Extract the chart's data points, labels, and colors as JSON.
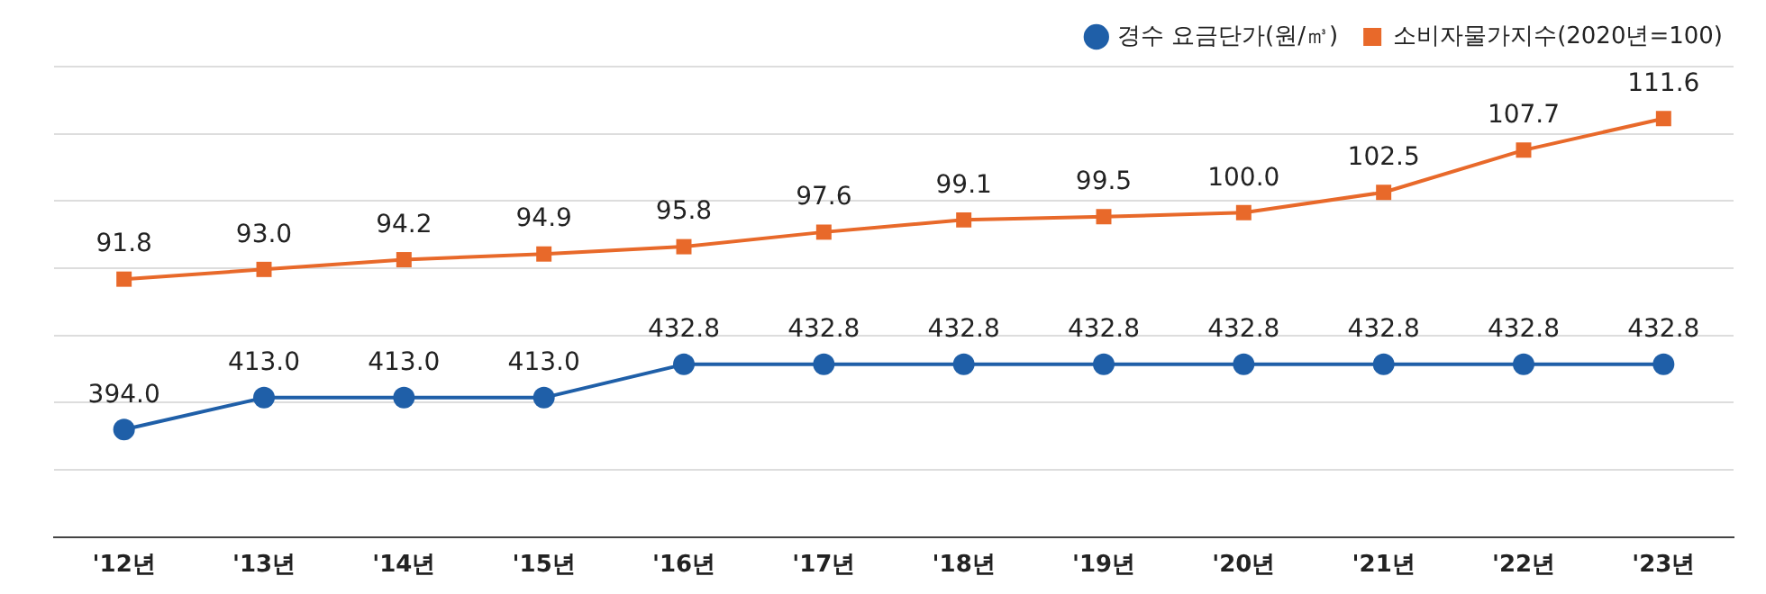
{
  "chart_data": {
    "type": "line",
    "categories": [
      "'12년",
      "'13년",
      "'14년",
      "'15년",
      "'16년",
      "'17년",
      "'18년",
      "'19년",
      "'20년",
      "'21년",
      "'22년",
      "'23년"
    ],
    "series": [
      {
        "name": "경수 요금단가(원/㎥)",
        "color": "#1f5fa8",
        "marker": "circle",
        "value_labels": [
          "394.0",
          "413.0",
          "413.0",
          "413.0",
          "432.8",
          "432.8",
          "432.8",
          "432.8",
          "432.8",
          "432.8",
          "432.8",
          "432.8"
        ],
        "values": [
          394.0,
          413.0,
          413.0,
          413.0,
          432.8,
          432.8,
          432.8,
          432.8,
          432.8,
          432.8,
          432.8,
          432.8
        ]
      },
      {
        "name": "소비자물가지수(2020년=100)",
        "color": "#e8692a",
        "marker": "square",
        "axis": "y2",
        "value_labels": [
          "91.8",
          "93.0",
          "94.2",
          "94.9",
          "95.8",
          "97.6",
          "99.1",
          "99.5",
          "100.0",
          "102.5",
          "107.7",
          "111.6"
        ],
        "values": [
          91.8,
          93.0,
          94.2,
          94.9,
          95.8,
          97.6,
          99.1,
          99.5,
          100.0,
          102.5,
          107.7,
          111.6
        ]
      }
    ],
    "ylim": [
      330,
      610
    ],
    "y2lim": [
      60,
      118
    ],
    "grid": "y",
    "legend": "top right",
    "tick_labels": "x",
    "line_style": "solid"
  }
}
